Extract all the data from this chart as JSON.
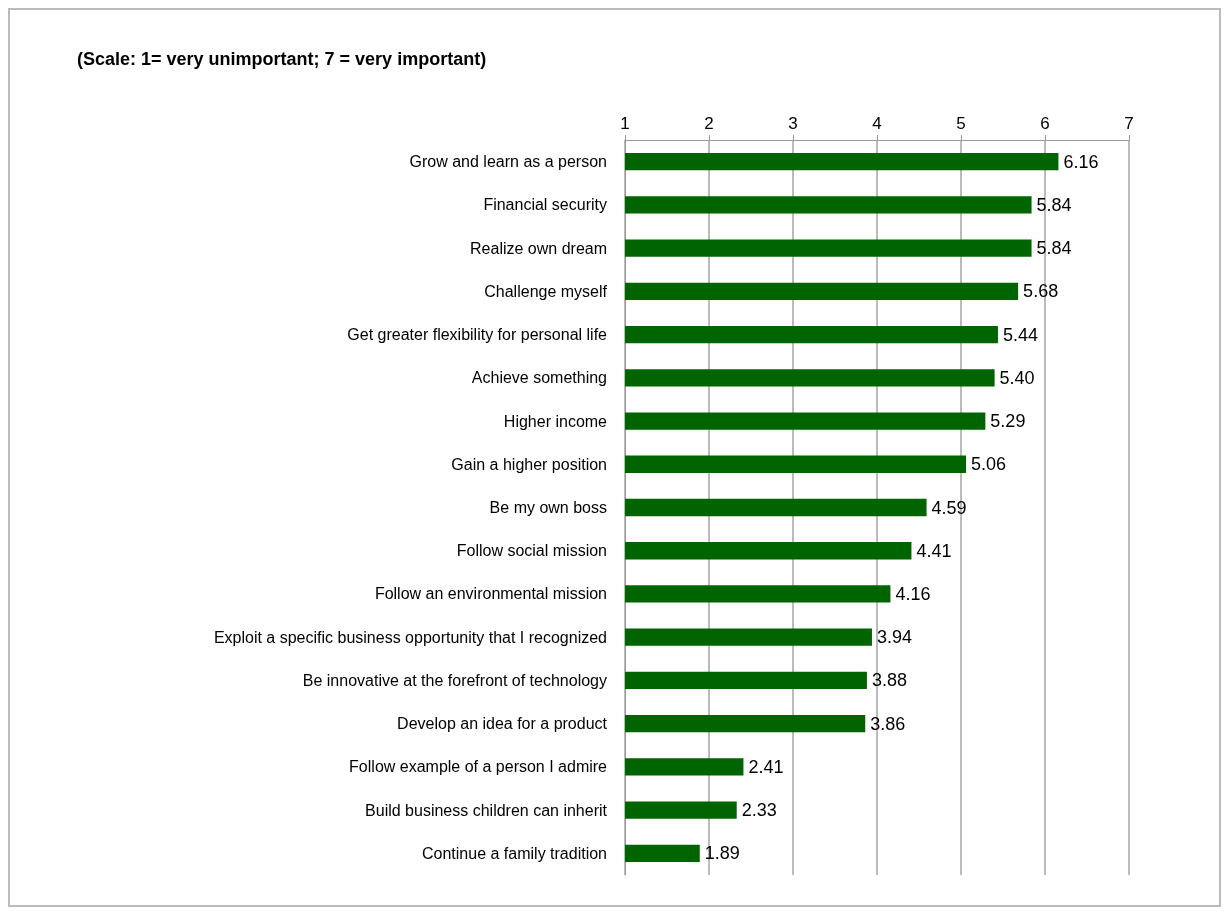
{
  "chart_data": {
    "type": "bar",
    "orientation": "horizontal",
    "title": "(Scale: 1= very unimportant; 7 = very important)",
    "categories": [
      "Grow and learn as a person",
      "Financial security",
      "Realize own dream",
      "Challenge myself",
      "Get greater flexibility for personal life",
      "Achieve something",
      "Higher income",
      "Gain a higher position",
      "Be my own boss",
      "Follow social mission",
      "Follow an environmental mission",
      "Exploit a specific business opportunity that I recognized",
      "Be innovative at the forefront of technology",
      "Develop an idea for a product",
      "Follow example of a person I admire",
      "Build business children can inherit",
      "Continue a family tradition"
    ],
    "values": [
      6.16,
      5.84,
      5.84,
      5.68,
      5.44,
      5.4,
      5.29,
      5.06,
      4.59,
      4.41,
      4.16,
      3.94,
      3.88,
      3.86,
      2.41,
      2.33,
      1.89
    ],
    "value_labels": [
      "6.16",
      "5.84",
      "5.84",
      "5.68",
      "5.44",
      "5.40",
      "5.29",
      "5.06",
      "4.59",
      "4.41",
      "4.16",
      "3.94",
      "3.88",
      "3.86",
      "2.41",
      "2.33",
      "1.89"
    ],
    "color": "#006400",
    "xlim": [
      1,
      7
    ],
    "xticks": [
      1,
      2,
      3,
      4,
      5,
      6,
      7
    ],
    "grid": "x"
  }
}
